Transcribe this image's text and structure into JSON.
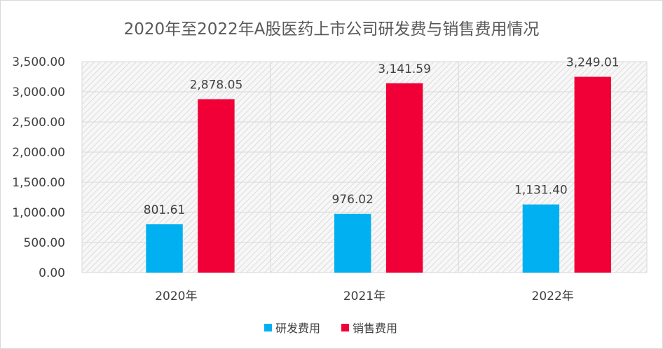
{
  "chart_data": {
    "type": "bar",
    "title": "2020年至2022年A股医药上市公司研发费与销售费用情况",
    "categories": [
      "2020年",
      "2021年",
      "2022年"
    ],
    "series": [
      {
        "name": "研发费用",
        "values": [
          801.61,
          976.02,
          1131.4
        ],
        "labels": [
          "801.61",
          "976.02",
          "1,131.40"
        ],
        "color": "#00b0f0"
      },
      {
        "name": "销售费用",
        "values": [
          2878.05,
          3141.59,
          3249.01
        ],
        "labels": [
          "2,878.05",
          "3,141.59",
          "3,249.01"
        ],
        "color": "#f00037"
      }
    ],
    "ylim": [
      0,
      3500
    ],
    "yticks": [
      0,
      500,
      1000,
      1500,
      2000,
      2500,
      3000,
      3500
    ],
    "ytick_labels": [
      "0.00",
      "500.00",
      "1,000.00",
      "1,500.00",
      "2,000.00",
      "2,500.00",
      "3,000.00",
      "3,500.00"
    ],
    "legend_position": "bottom",
    "grid": true
  }
}
